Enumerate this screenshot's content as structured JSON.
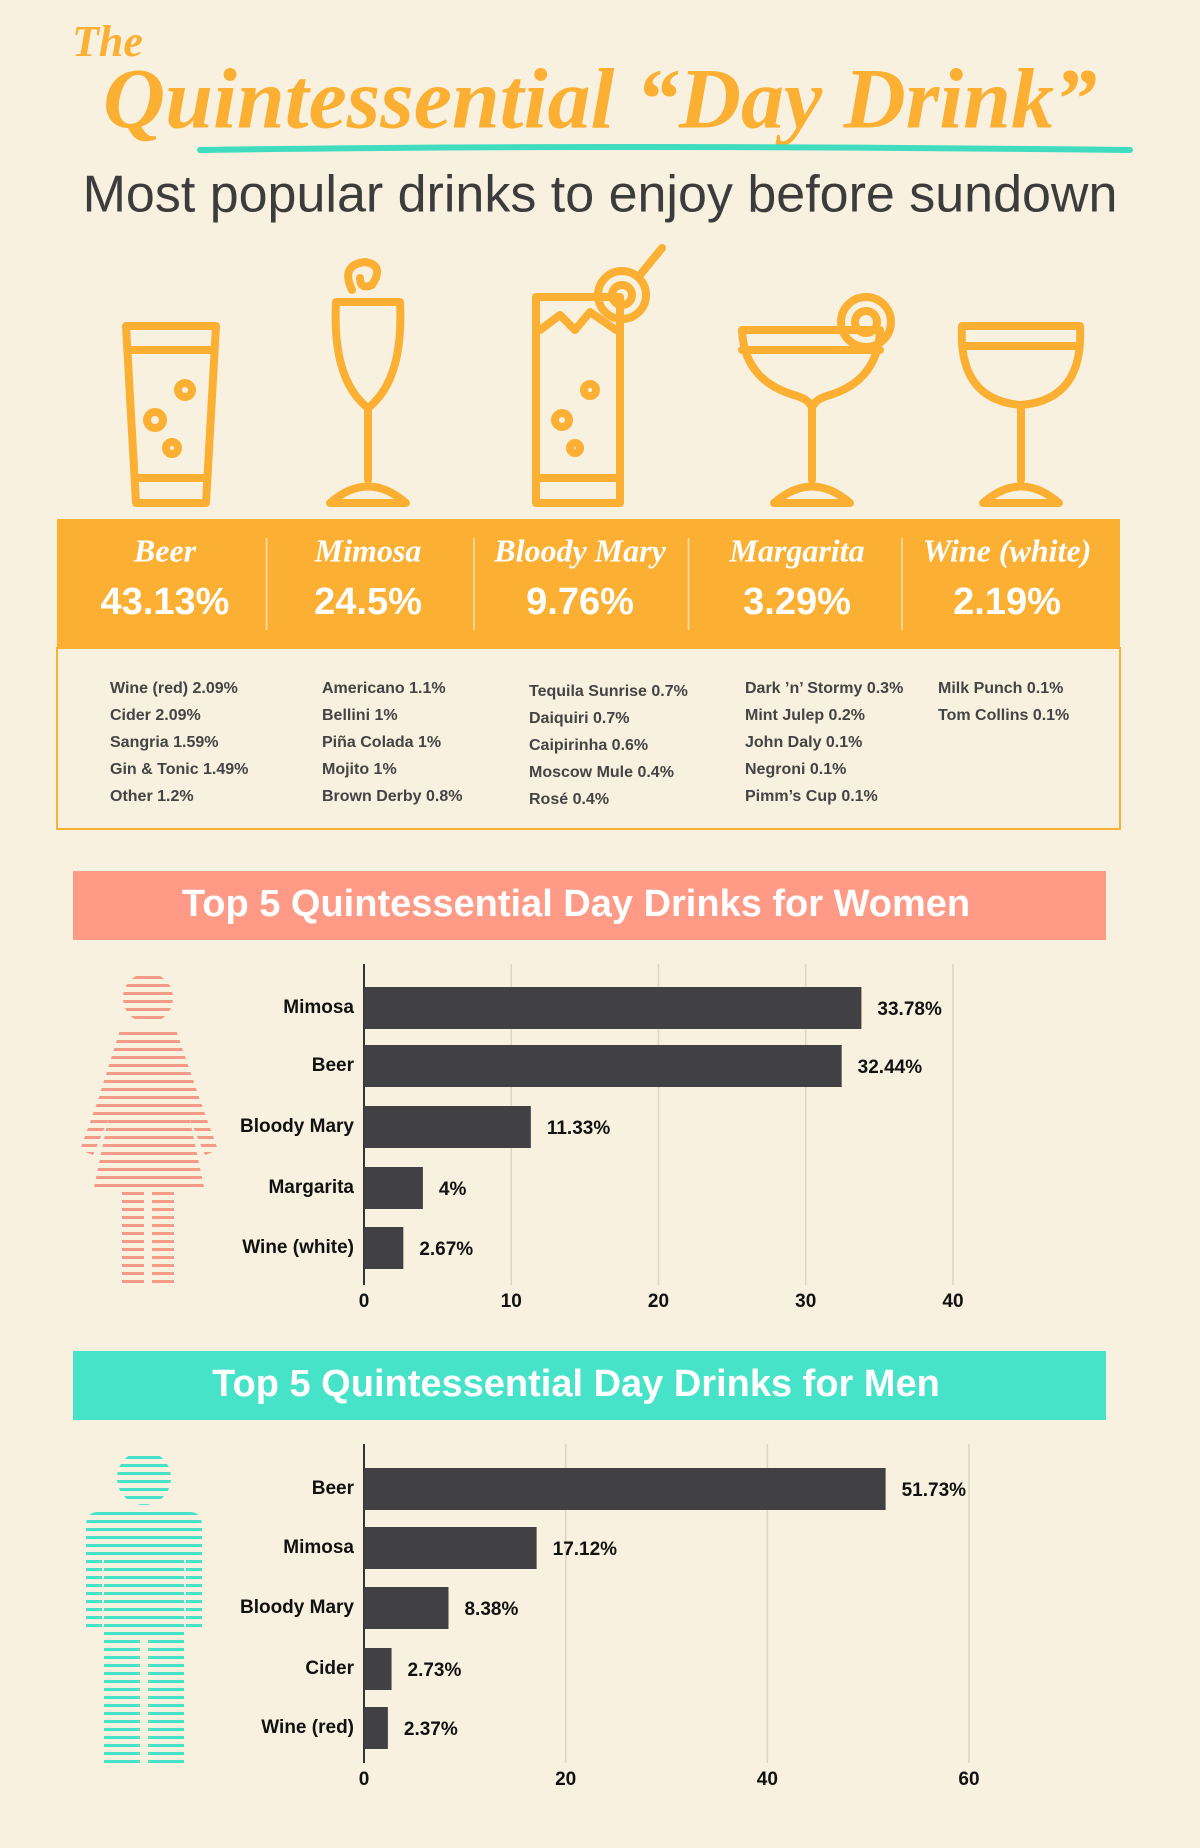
{
  "header": {
    "kicker": "The",
    "title": "Quintessential “Day Drink”",
    "subtitle": "Most popular drinks to enjoy before sundown"
  },
  "top_drinks": [
    {
      "name": "Beer",
      "share": "43.13%"
    },
    {
      "name": "Mimosa",
      "share": "24.5%"
    },
    {
      "name": "Bloody Mary",
      "share": "9.76%"
    },
    {
      "name": "Margarita",
      "share": "3.29%"
    },
    {
      "name": "Wine (white)",
      "share": "2.19%"
    }
  ],
  "other_drinks": [
    [
      "Wine (red) 2.09%",
      "Cider 2.09%",
      "Sangria 1.59%",
      "Gin & Tonic 1.49%",
      "Other 1.2%"
    ],
    [
      "Americano 1.1%",
      "Bellini 1%",
      "Piña Colada 1%",
      "Mojito 1%",
      "Brown Derby 0.8%"
    ],
    [
      "Tequila Sunrise 0.7%",
      "Daiquiri 0.7%",
      "Caipirinha 0.6%",
      "Moscow Mule 0.4%",
      "Rosé 0.4%"
    ],
    [
      "Dark ’n’ Stormy 0.3%",
      "Mint Julep 0.2%",
      "John Daly 0.1%",
      "Negroni 0.1%",
      "Pimm’s Cup 0.1%"
    ],
    [
      "Milk Punch 0.1%",
      "Tom Collins 0.1%"
    ]
  ],
  "chart_data": [
    {
      "type": "bar",
      "orientation": "horizontal",
      "title": "Top 5 Quintessential Day Drinks for Women",
      "categories": [
        "Mimosa",
        "Beer",
        "Bloody Mary",
        "Margarita",
        "Wine (white)"
      ],
      "values": [
        33.78,
        32.44,
        11.33,
        4,
        2.67
      ],
      "value_labels": [
        "33.78%",
        "32.44%",
        "11.33%",
        "4%",
        "2.67%"
      ],
      "color": "#414042",
      "xlim": [
        0,
        40
      ],
      "xticks": [
        0,
        10,
        20,
        30,
        40
      ],
      "grid": true
    },
    {
      "type": "bar",
      "orientation": "horizontal",
      "title": "Top 5 Quintessential Day Drinks for Men",
      "categories": [
        "Beer",
        "Mimosa",
        "Bloody Mary",
        "Cider",
        "Wine (red)"
      ],
      "values": [
        51.73,
        17.12,
        8.38,
        2.73,
        2.37
      ],
      "value_labels": [
        "51.73%",
        "17.12%",
        "8.38%",
        "2.73%",
        "2.37%"
      ],
      "color": "#414042",
      "xlim": [
        0,
        60
      ],
      "xticks": [
        0,
        20,
        40,
        60
      ],
      "grid": true
    }
  ]
}
